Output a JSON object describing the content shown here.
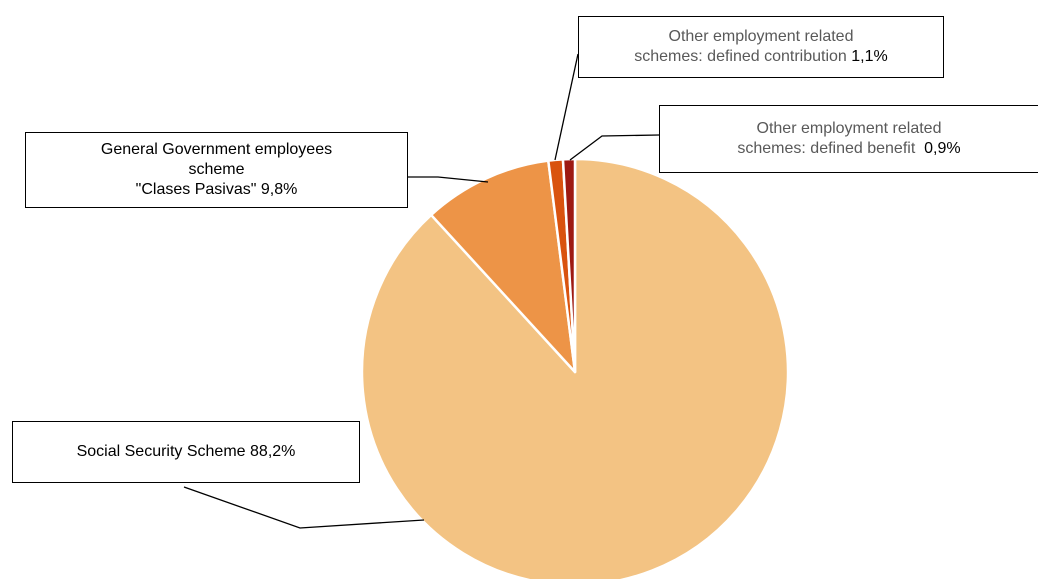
{
  "chart_data": {
    "type": "pie",
    "title": "",
    "start_angle_deg": 0,
    "direction": "clockwise",
    "slices": [
      {
        "label_line1": "Social Security Scheme",
        "value_text": "88,2%",
        "value": 88.2,
        "color": "#F3C383"
      },
      {
        "label_line1": "General Government employees",
        "label_line2": "scheme",
        "label_line3": "\"Clases Pasivas\"",
        "value_text": "9,8%",
        "value": 9.8,
        "color": "#ED9447"
      },
      {
        "label_line1": "Other employment related",
        "label_line2": "schemes: defined contribution",
        "value_text": "1,1%",
        "value": 1.1,
        "color": "#D9530F"
      },
      {
        "label_line1": "Other employment related",
        "label_line2": "schemes: defined benefit",
        "value_text": "0,9%",
        "value": 0.9,
        "color": "#9E1A12"
      }
    ]
  }
}
